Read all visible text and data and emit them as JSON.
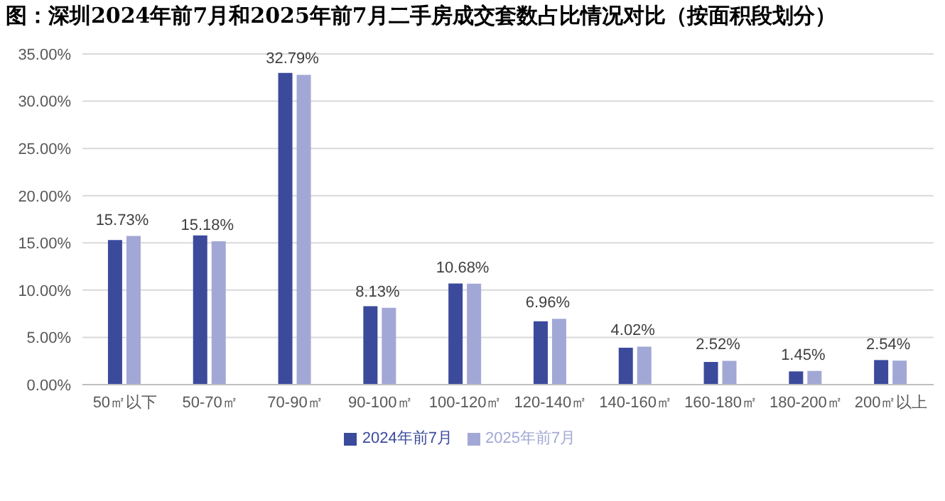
{
  "chart_data": {
    "type": "bar",
    "title": "图：深圳2024年前7月和2025年前7月二手房成交套数占比情况对比（按面积段划分）",
    "categories": [
      "50㎡以下",
      "50-70㎡",
      "70-90㎡",
      "90-100㎡",
      "100-120㎡",
      "120-140㎡",
      "140-160㎡",
      "160-180㎡",
      "180-200㎡",
      "200㎡以上"
    ],
    "series": [
      {
        "name": "2024年前7月",
        "color": "#3b4a9b",
        "values": [
          15.3,
          15.8,
          33.0,
          8.3,
          10.7,
          6.7,
          3.9,
          2.4,
          1.4,
          2.6
        ]
      },
      {
        "name": "2025年前7月",
        "color": "#a2a8d5",
        "values": [
          15.73,
          15.18,
          32.79,
          8.13,
          10.68,
          6.96,
          4.02,
          2.52,
          1.45,
          2.54
        ],
        "value_labels": [
          "15.73%",
          "15.18%",
          "32.79%",
          "8.13%",
          "10.68%",
          "6.96%",
          "4.02%",
          "2.52%",
          "1.45%",
          "2.54%"
        ]
      }
    ],
    "ylim": [
      0,
      35
    ],
    "yticks": [
      {
        "value": 0,
        "label": "0.00%"
      },
      {
        "value": 5,
        "label": "5.00%"
      },
      {
        "value": 10,
        "label": "10.00%"
      },
      {
        "value": 15,
        "label": "15.00%"
      },
      {
        "value": 20,
        "label": "20.00%"
      },
      {
        "value": 25,
        "label": "25.00%"
      },
      {
        "value": 30,
        "label": "30.00%"
      },
      {
        "value": 35,
        "label": "35.00%"
      }
    ],
    "grid": "y",
    "legend": "bottom"
  }
}
